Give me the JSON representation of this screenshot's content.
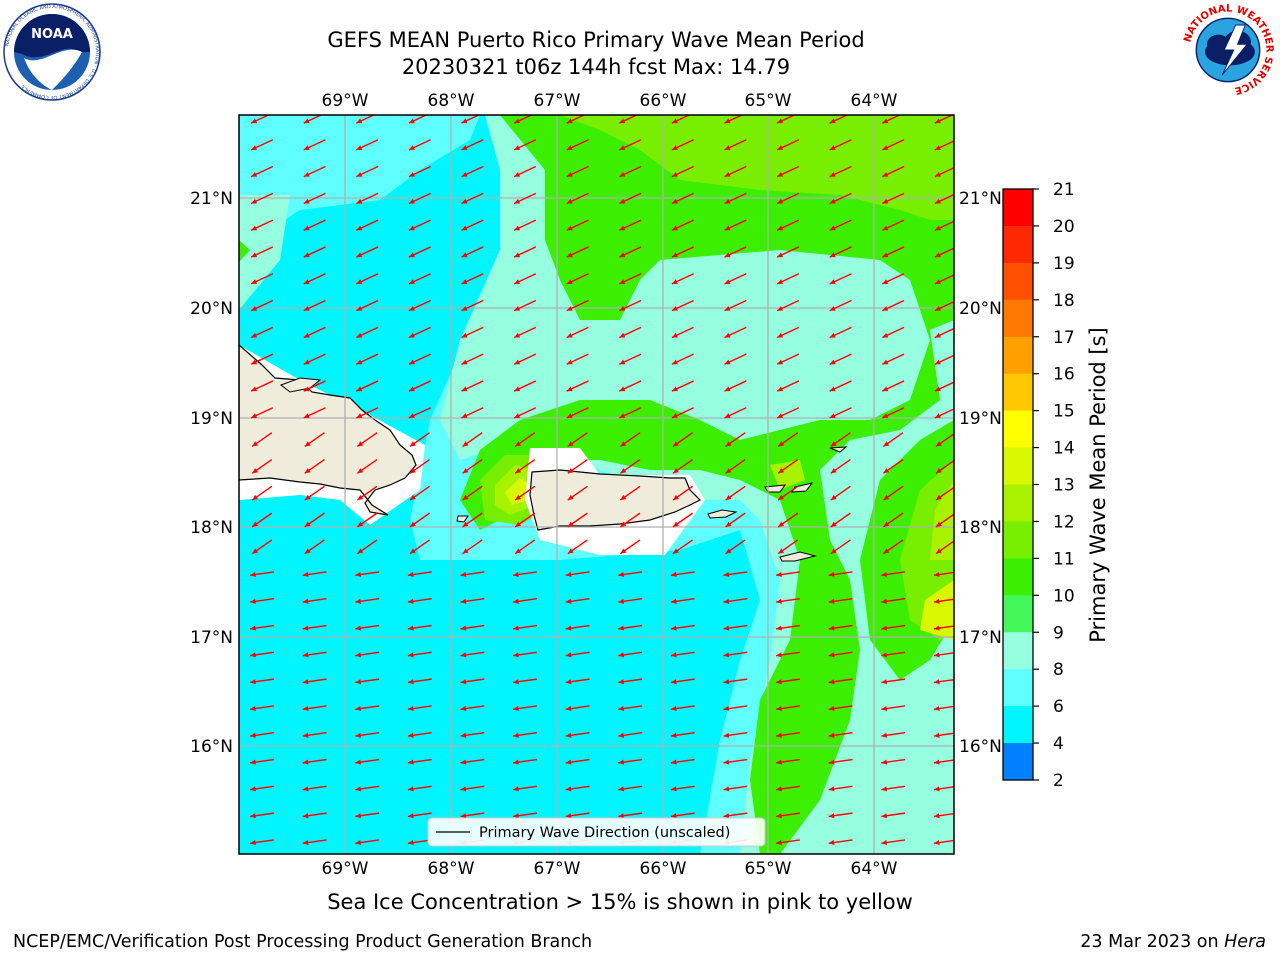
{
  "header": {
    "title_line1": "GEFS MEAN Puerto Rico Primary Wave Mean Period",
    "title_line2": "20230321 t06z 144h fcst   Max: 14.79"
  },
  "logos": {
    "left": {
      "icon": "noaa-logo-icon",
      "text": "NOAA",
      "ring_text": "NATIONAL OCEANIC AND ATMOSPHERIC ADMINISTRATION · U.S. DEPARTMENT OF COMMERCE"
    },
    "right": {
      "icon": "nws-logo-icon",
      "ring_text": "NATIONAL WEATHER SERVICE"
    }
  },
  "map": {
    "lon_labels": [
      "69°W",
      "68°W",
      "67°W",
      "66°W",
      "65°W",
      "64°W"
    ],
    "lat_labels": [
      "21°N",
      "20°N",
      "19°N",
      "18°N",
      "17°N",
      "16°N"
    ],
    "legend_label": "Primary Wave Direction (unscaled)",
    "land_color": "#efecdc",
    "arrow_color": "#ff0000",
    "field": {
      "name": "Primary Wave Mean Period",
      "units": "s",
      "max": 14.79,
      "regions": [
        {
          "area": "south and west open sea",
          "period_s": 7
        },
        {
          "area": "central channel",
          "period_s": 8.5
        },
        {
          "area": "north Atlantic band",
          "period_s": 9.5
        },
        {
          "area": "northeast Atlantic",
          "period_s": 11
        },
        {
          "area": "far northeast",
          "period_s": 12.5
        },
        {
          "area": "west of Puerto Rico",
          "period_s": 14
        },
        {
          "area": "east of Virgin Islands",
          "period_s": 13.5
        }
      ]
    }
  },
  "colorbar": {
    "label": "Primary Wave Mean Period [s]",
    "ticks": [
      "21",
      "20",
      "19",
      "18",
      "17",
      "16",
      "15",
      "14",
      "13",
      "12",
      "11",
      "10",
      "9",
      "8",
      "6",
      "4",
      "2"
    ],
    "colors": [
      "#ff0000",
      "#ff2800",
      "#ff5000",
      "#ff7800",
      "#ffa000",
      "#ffc800",
      "#ffff00",
      "#d8f700",
      "#a8f200",
      "#78ef00",
      "#3cef00",
      "#44f85a",
      "#96ffe0",
      "#60ffff",
      "#00f5ff",
      "#0080ff",
      "#0000ff"
    ]
  },
  "notes": {
    "sea_ice": "Sea Ice Concentration > 15% is shown in pink to yellow"
  },
  "footer": {
    "left": "NCEP/EMC/Verification Post Processing Product Generation Branch",
    "right_date": "23 Mar 2023 on ",
    "right_machine": "Hera"
  }
}
